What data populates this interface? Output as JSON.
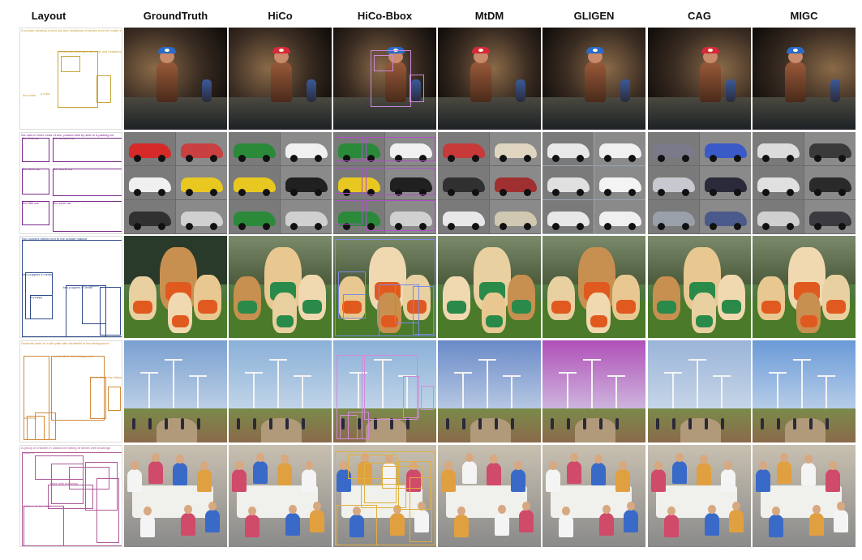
{
  "columns": [
    "Layout",
    "GroundTruth",
    "HiCo",
    "HiCo-Bbox",
    "MtDM",
    "GLIGEN",
    "CAG",
    "MIGC"
  ],
  "rows": [
    {
      "id": "cave",
      "layout_color": "#c9a53a",
      "caption": "A woman wearing a hard hat and headlamp emerges from the water inside a cave",
      "labels": [
        "a woman wearing a hard hat and headlamp",
        "a child",
        "the water"
      ]
    },
    {
      "id": "cars",
      "layout_color": "#7a2a8a",
      "caption": "Six cars in three rows of two, parked side by side in a parking lot",
      "labels": [
        "the first car",
        "the second car",
        "the third car",
        "the fourth car",
        "the fifth car",
        "the sixth car"
      ]
    },
    {
      "id": "dogs",
      "layout_color": "#2f4a8a",
      "caption": "Two puppies sitting next to the orange mascot",
      "labels": [
        "two puppies in vests",
        "the mascot",
        "a puppy",
        "two puppies in vests"
      ]
    },
    {
      "id": "windmills",
      "layout_color": "#d18a3a",
      "caption": "Students walk on a dirt path with windmills in the background",
      "labels": [
        "windmills in the background",
        "windmills in the distance",
        "students"
      ]
    },
    {
      "id": "classroom",
      "layout_color": "#b05a9a",
      "caption": "A group of children in classroom sitting at tables with drawings",
      "labels": [
        "children",
        "table with drawings",
        "children at the table"
      ]
    }
  ],
  "image_cells": [
    [
      "gt",
      "hico",
      "hicobbox",
      "mtdm",
      "gligen",
      "cag",
      "migc"
    ]
  ]
}
